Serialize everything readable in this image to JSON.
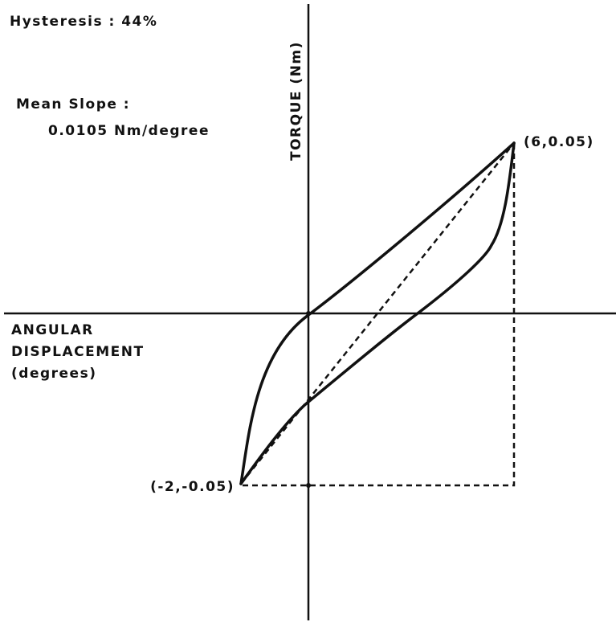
{
  "annotations": {
    "hysteresis": "Hysteresis : 44%",
    "mean_slope_label": "Mean Slope :",
    "mean_slope_value": "0.0105 Nm/degree"
  },
  "axes": {
    "y_label": "TORQUE (Nm)",
    "x_label": [
      "ANGULAR",
      "DISPLACEMENT",
      "(degrees)"
    ]
  },
  "points": [
    {
      "label": "(6,0.05)"
    },
    {
      "label": "(-2,-0.05)"
    }
  ]
}
